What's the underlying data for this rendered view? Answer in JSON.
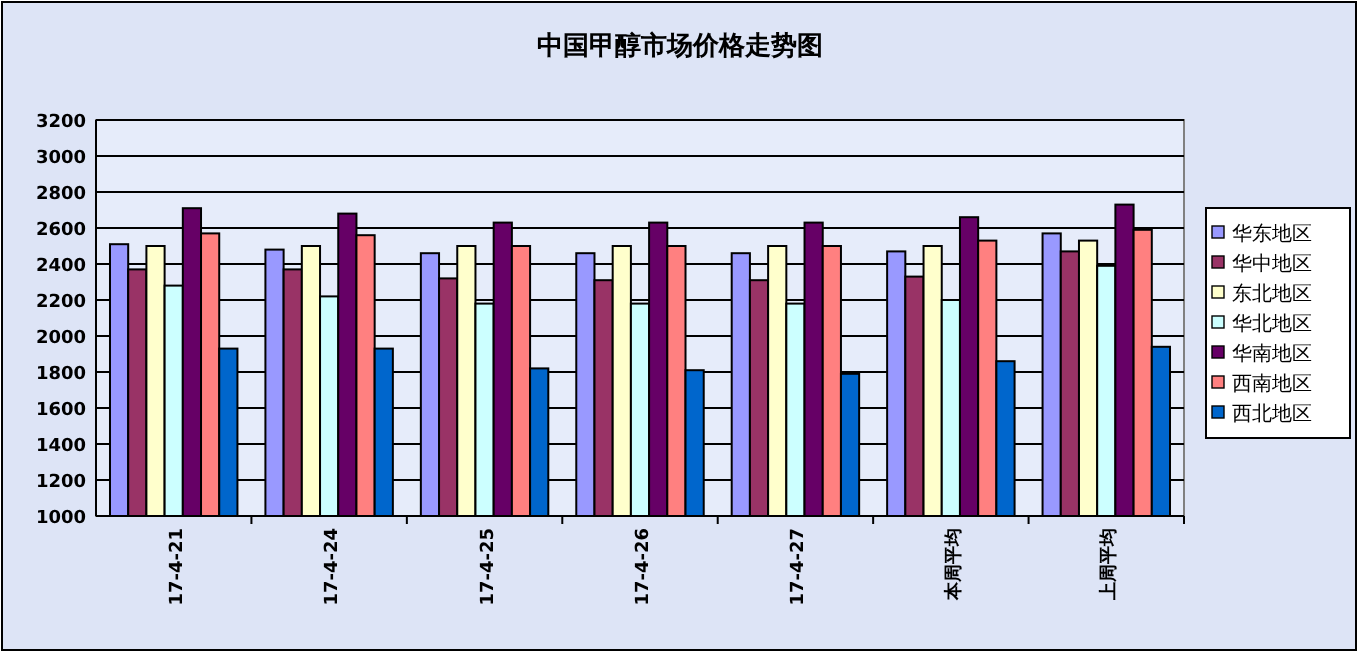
{
  "chart_data": {
    "type": "bar",
    "title": "中国甲醇市场价格走势图",
    "categories": [
      "17-4-21",
      "17-4-24",
      "17-4-25",
      "17-4-26",
      "17-4-27",
      "本周平均",
      "上周平均"
    ],
    "series": [
      {
        "name": "华东地区",
        "color": "#9999ff",
        "values": [
          2510,
          2480,
          2460,
          2460,
          2460,
          2470,
          2570
        ]
      },
      {
        "name": "华中地区",
        "color": "#993366",
        "values": [
          2370,
          2370,
          2320,
          2310,
          2310,
          2330,
          2470
        ]
      },
      {
        "name": "东北地区",
        "color": "#ffffcc",
        "values": [
          2500,
          2500,
          2500,
          2500,
          2500,
          2500,
          2530
        ]
      },
      {
        "name": "华北地区",
        "color": "#ccffff",
        "values": [
          2280,
          2220,
          2180,
          2180,
          2180,
          2200,
          2390
        ]
      },
      {
        "name": "华南地区",
        "color": "#660066",
        "values": [
          2710,
          2680,
          2630,
          2630,
          2630,
          2660,
          2730
        ]
      },
      {
        "name": "西南地区",
        "color": "#ff8080",
        "values": [
          2570,
          2560,
          2500,
          2500,
          2500,
          2530,
          2590
        ]
      },
      {
        "name": "西北地区",
        "color": "#0066cc",
        "values": [
          1930,
          1930,
          1820,
          1810,
          1790,
          1860,
          1940
        ]
      }
    ],
    "ylim": [
      1000,
      3200
    ],
    "yticks": [
      1000,
      1200,
      1400,
      1600,
      1800,
      2000,
      2200,
      2400,
      2600,
      2800,
      3000,
      3200
    ],
    "grid": "y",
    "legend": "right"
  }
}
